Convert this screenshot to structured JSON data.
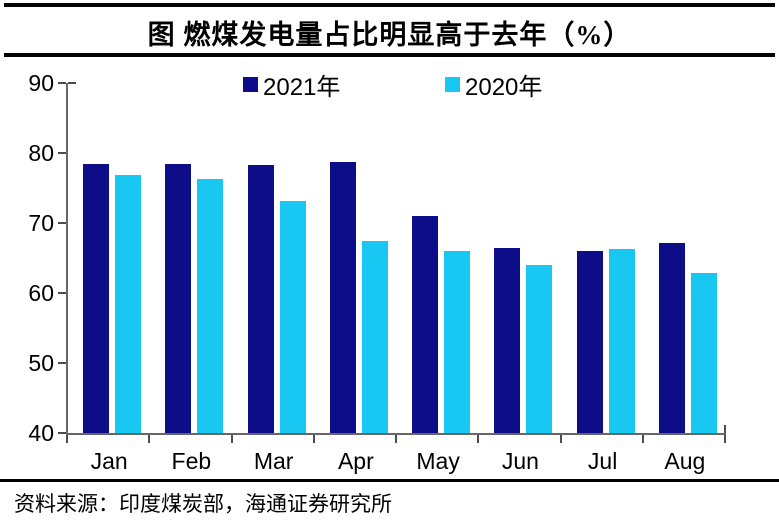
{
  "title": "图  燃煤发电量占比明显高于去年（%）",
  "source_note": "资料来源：印度煤炭部，海通证券研究所",
  "colors": {
    "series_2021": "#0d0d8a",
    "series_2020": "#18c7f2",
    "axis": "#666666",
    "tick": "#4d4d4d",
    "text": "#000000"
  },
  "legend": [
    {
      "label": "2021年",
      "color": "#0d0d8a"
    },
    {
      "label": "2020年",
      "color": "#18c7f2"
    }
  ],
  "chart_data": {
    "type": "bar",
    "title": "图  燃煤发电量占比明显高于去年（%）",
    "categories": [
      "Jan",
      "Feb",
      "Mar",
      "Apr",
      "May",
      "Jun",
      "Jul",
      "Aug"
    ],
    "series": [
      {
        "name": "2021年",
        "color": "#0d0d8a",
        "values": [
          78.5,
          78.4,
          78.3,
          78.7,
          71.0,
          66.4,
          66.0,
          67.1
        ]
      },
      {
        "name": "2020年",
        "color": "#18c7f2",
        "values": [
          76.9,
          76.3,
          73.1,
          67.5,
          66.0,
          64.0,
          66.3,
          62.8
        ]
      }
    ],
    "xlabel": "",
    "ylabel": "",
    "ylim": [
      40,
      90
    ],
    "yticks": [
      40,
      50,
      60,
      70,
      80,
      90
    ],
    "grid": false,
    "legend_position": "top-center"
  }
}
